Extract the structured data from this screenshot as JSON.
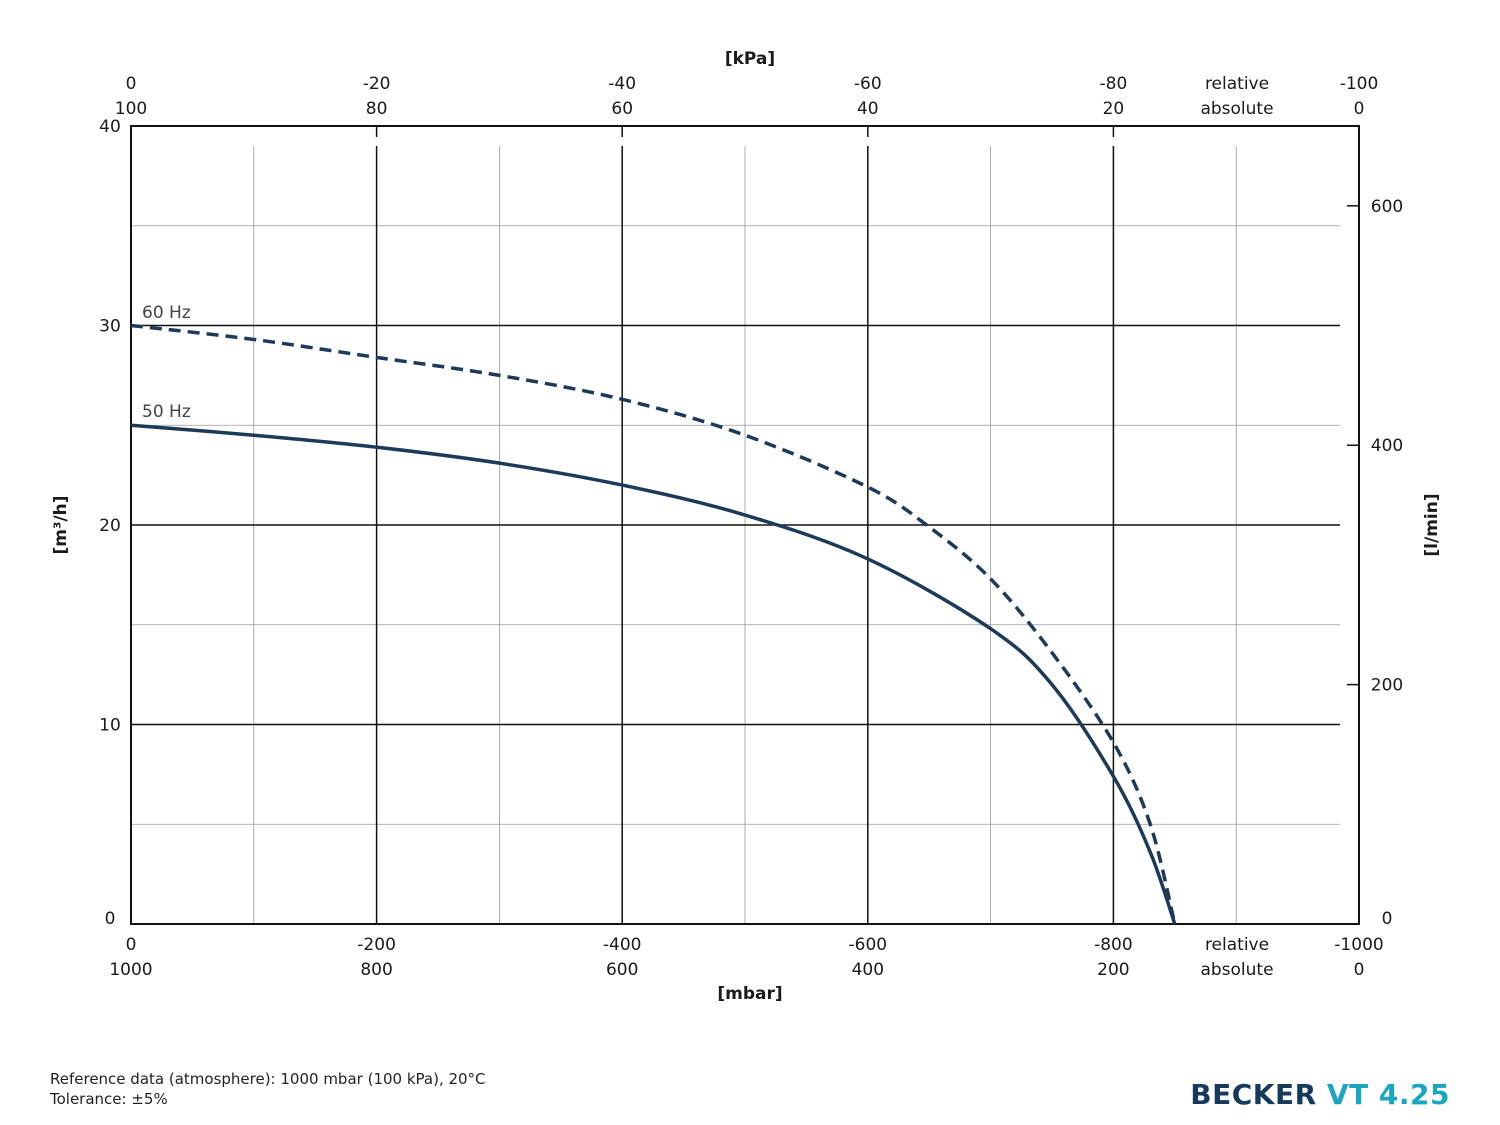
{
  "chart_data": {
    "type": "line",
    "xlabel": "[mbar]",
    "x_top_label": "[kPa]",
    "ylabel": "[m³/h]",
    "y2label": "[l/min]",
    "xlim": [
      0,
      -1000
    ],
    "ylim": [
      0,
      40
    ],
    "y2lim": [
      0,
      666.7
    ],
    "grid": true,
    "x_ticks_relative": [
      "0",
      "-200",
      "-400",
      "-600",
      "-800",
      "-1000"
    ],
    "x_ticks_absolute": [
      "1000",
      "800",
      "600",
      "400",
      "200",
      "0"
    ],
    "x_top_ticks_relative": [
      "0",
      "-20",
      "-40",
      "-60",
      "-80",
      "-100"
    ],
    "x_top_ticks_absolute": [
      "100",
      "80",
      "60",
      "40",
      "20",
      "0"
    ],
    "relative_label": "relative",
    "absolute_label": "absolute",
    "y_ticks": [
      "0",
      "10",
      "20",
      "30",
      "40"
    ],
    "y2_ticks": [
      "0",
      "200",
      "400",
      "600"
    ],
    "series": [
      {
        "name": "60 Hz",
        "style": "dashed",
        "color": "#1c3a5a",
        "x": [
          0,
          -100,
          -200,
          -300,
          -400,
          -500,
          -600,
          -650,
          -700,
          -750,
          -800,
          -830,
          -850
        ],
        "y": [
          30,
          29.3,
          28.4,
          27.5,
          26.3,
          24.5,
          21.9,
          19.9,
          17.3,
          13.6,
          9.1,
          5.0,
          0
        ]
      },
      {
        "name": "50 Hz",
        "style": "solid",
        "color": "#1c3a5a",
        "x": [
          0,
          -100,
          -200,
          -300,
          -400,
          -500,
          -600,
          -700,
          -750,
          -800,
          -830,
          -850
        ],
        "y": [
          25,
          24.5,
          23.9,
          23.1,
          22.0,
          20.5,
          18.3,
          14.8,
          12.0,
          7.4,
          3.6,
          0
        ]
      }
    ]
  },
  "footer": {
    "reference": "Reference data (atmosphere): 1000 mbar (100 kPa), 20°C",
    "tolerance": "Tolerance: ±5%"
  },
  "logo": {
    "brand": "BECKER",
    "model": "VT 4.25",
    "brand_color": "#163a5c",
    "model_color": "#1aa6c0"
  }
}
